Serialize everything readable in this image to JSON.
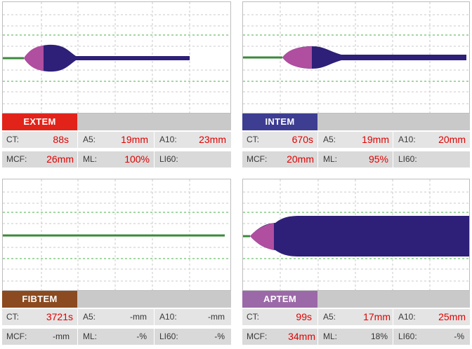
{
  "colors": {
    "extem": "#e2231a",
    "intem": "#3d3d92",
    "fibtem": "#8b4a1f",
    "aptem": "#9b69a8",
    "trace_dark": "#2e1f78",
    "trace_pink": "#b04ea0",
    "baseline": "#3a8a3a",
    "grid_green": "#45b045",
    "grid_gray": "#c9c9c9",
    "value_red": "#e00000"
  },
  "panels": {
    "extem": {
      "label": "EXTEM",
      "ct_label": "CT:",
      "ct_value": "88s",
      "a5_label": "A5:",
      "a5_value": "19mm",
      "a10_label": "A10:",
      "a10_value": "23mm",
      "mcf_label": "MCF:",
      "mcf_value": "26mm",
      "ml_label": "ML:",
      "ml_value": "100%",
      "li60_label": "LI60:",
      "li60_value": ""
    },
    "intem": {
      "label": "INTEM",
      "ct_label": "CT:",
      "ct_value": "670s",
      "a5_label": "A5:",
      "a5_value": "19mm",
      "a10_label": "A10:",
      "a10_value": "20mm",
      "mcf_label": "MCF:",
      "mcf_value": "20mm",
      "ml_label": "ML:",
      "ml_value": "95%",
      "li60_label": "LI60:",
      "li60_value": ""
    },
    "fibtem": {
      "label": "FIBTEM",
      "ct_label": "CT:",
      "ct_value": "3721s",
      "a5_label": "A5:",
      "a5_value": "-mm",
      "a10_label": "A10:",
      "a10_value": "-mm",
      "mcf_label": "MCF:",
      "mcf_value": "-mm",
      "ml_label": "ML:",
      "ml_value": "-%",
      "li60_label": "LI60:",
      "li60_value": "-%"
    },
    "aptem": {
      "label": "APTEM",
      "ct_label": "CT:",
      "ct_value": "99s",
      "a5_label": "A5:",
      "a5_value": "17mm",
      "a10_label": "A10:",
      "a10_value": "25mm",
      "mcf_label": "MCF:",
      "mcf_value": "34mm",
      "ml_label": "ML:",
      "ml_value": "18%",
      "li60_label": "LI60:",
      "li60_value": "-%"
    }
  }
}
